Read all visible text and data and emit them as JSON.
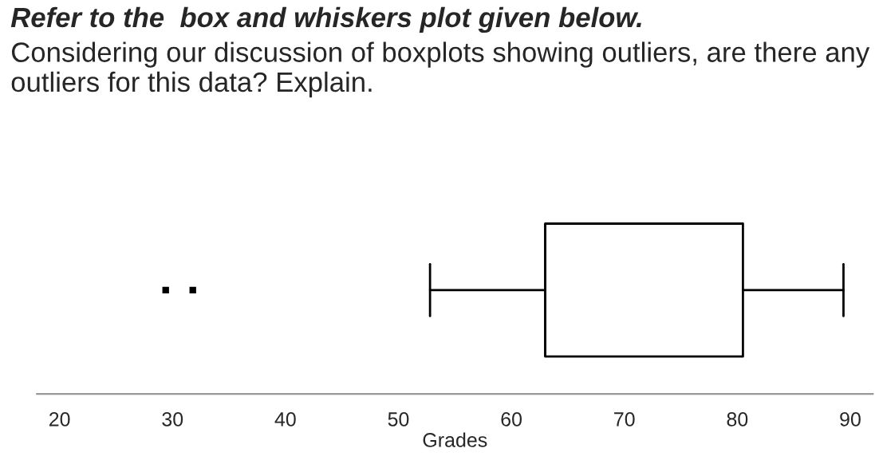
{
  "chart_data": {
    "type": "box",
    "title": "Refer to the  box and whiskers plot given below.",
    "subtitle": "Considering our discussion of boxplots showing outliers, are there any outliers for this data? Explain.",
    "xlabel": "Grades",
    "orientation": "horizontal",
    "categories": [
      null
    ],
    "boxes": [
      {
        "low": 52.8,
        "q1": 63,
        "median": 63,
        "q3": 80.5,
        "high": 89.4,
        "outliers": [
          29.4,
          31.8
        ]
      }
    ],
    "xlim": [
      18,
      92
    ],
    "xticks": [
      20,
      30,
      40,
      50,
      60,
      70,
      80,
      90
    ],
    "grid": false,
    "tick_labels": "x"
  }
}
